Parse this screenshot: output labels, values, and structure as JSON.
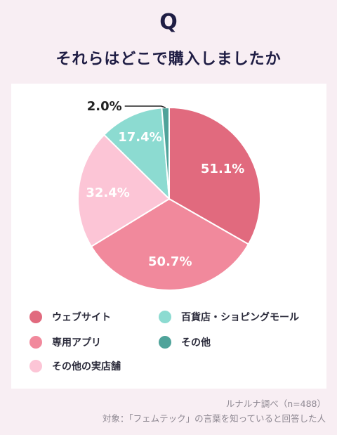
{
  "header": {
    "q_mark": "Q",
    "question": "それらはどこで購入しましたか"
  },
  "chart_data": {
    "type": "pie",
    "unit": "%",
    "note": "multiple-answer survey; slice angles follow reading order in the image",
    "slices": [
      {
        "label": "ウェブサイト",
        "value": 51.1,
        "display": "51.1%",
        "color": "#e16a7e"
      },
      {
        "label": "専用アプリ",
        "value": 50.7,
        "display": "50.7%",
        "color": "#f1899c"
      },
      {
        "label": "その他の実店舗",
        "value": 32.4,
        "display": "32.4%",
        "color": "#fcc5d6"
      },
      {
        "label": "百貨店・ショピングモール",
        "value": 17.4,
        "display": "17.4%",
        "color": "#8cdbd1"
      },
      {
        "label": "その他",
        "value": 2.0,
        "display": "2.0%",
        "color": "#4fa39a"
      }
    ]
  },
  "legend": [
    {
      "label": "ウェブサイト",
      "color": "#e16a7e"
    },
    {
      "label": "百貨店・ショピングモール",
      "color": "#8cdbd1"
    },
    {
      "label": "専用アプリ",
      "color": "#f1899c"
    },
    {
      "label": "その他",
      "color": "#4fa39a"
    },
    {
      "label": "その他の実店舗",
      "color": "#fcc5d6"
    }
  ],
  "source": {
    "line1": "ルナルナ調べ（n=488）",
    "line2": "対象：「フェムテック」の言葉を知っていると回答した人"
  }
}
